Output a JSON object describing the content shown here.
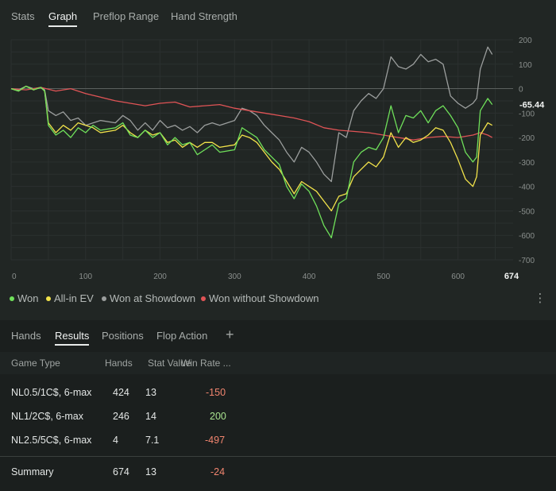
{
  "top_tabs": [
    {
      "label": "Stats"
    },
    {
      "label": "Graph"
    },
    {
      "label": "Preflop Range"
    },
    {
      "label": "Hand Strength"
    }
  ],
  "end_label": "-65.44",
  "max_hand_label": "674",
  "chart_data": {
    "type": "line",
    "x_ticks": [
      "0",
      "100",
      "200",
      "300",
      "400",
      "500",
      "600"
    ],
    "y_ticks": [
      "200",
      "100",
      "0",
      "-100",
      "-200",
      "-300",
      "-400",
      "-500",
      "-600",
      "-700"
    ],
    "xlim": [
      0,
      674
    ],
    "ylim": [
      -700,
      200
    ],
    "grid": true,
    "legend_position": "bottom-left",
    "series": [
      {
        "name": "Won",
        "color": "#6fe05a",
        "points": [
          [
            0,
            0
          ],
          [
            10,
            -10
          ],
          [
            20,
            10
          ],
          [
            30,
            -5
          ],
          [
            40,
            5
          ],
          [
            45,
            -10
          ],
          [
            50,
            -150
          ],
          [
            60,
            -190
          ],
          [
            70,
            -170
          ],
          [
            80,
            -200
          ],
          [
            90,
            -160
          ],
          [
            100,
            -180
          ],
          [
            110,
            -150
          ],
          [
            120,
            -170
          ],
          [
            140,
            -160
          ],
          [
            150,
            -140
          ],
          [
            160,
            -190
          ],
          [
            170,
            -200
          ],
          [
            180,
            -170
          ],
          [
            190,
            -200
          ],
          [
            200,
            -180
          ],
          [
            210,
            -230
          ],
          [
            220,
            -200
          ],
          [
            230,
            -230
          ],
          [
            240,
            -220
          ],
          [
            250,
            -270
          ],
          [
            260,
            -250
          ],
          [
            270,
            -230
          ],
          [
            280,
            -260
          ],
          [
            300,
            -250
          ],
          [
            310,
            -160
          ],
          [
            320,
            -180
          ],
          [
            330,
            -200
          ],
          [
            340,
            -250
          ],
          [
            350,
            -280
          ],
          [
            360,
            -310
          ],
          [
            370,
            -400
          ],
          [
            380,
            -450
          ],
          [
            390,
            -390
          ],
          [
            400,
            -420
          ],
          [
            410,
            -480
          ],
          [
            420,
            -560
          ],
          [
            430,
            -610
          ],
          [
            440,
            -470
          ],
          [
            450,
            -450
          ],
          [
            460,
            -300
          ],
          [
            470,
            -260
          ],
          [
            480,
            -240
          ],
          [
            490,
            -250
          ],
          [
            500,
            -200
          ],
          [
            510,
            -70
          ],
          [
            520,
            -180
          ],
          [
            530,
            -110
          ],
          [
            540,
            -120
          ],
          [
            550,
            -90
          ],
          [
            560,
            -140
          ],
          [
            570,
            -90
          ],
          [
            580,
            -70
          ],
          [
            590,
            -110
          ],
          [
            600,
            -160
          ],
          [
            610,
            -260
          ],
          [
            620,
            -300
          ],
          [
            625,
            -280
          ],
          [
            630,
            -90
          ],
          [
            640,
            -40
          ],
          [
            646,
            -65
          ]
        ]
      },
      {
        "name": "All-in EV",
        "color": "#f2e34a",
        "points": [
          [
            0,
            0
          ],
          [
            10,
            -10
          ],
          [
            20,
            10
          ],
          [
            30,
            -5
          ],
          [
            40,
            5
          ],
          [
            45,
            -10
          ],
          [
            50,
            -140
          ],
          [
            60,
            -180
          ],
          [
            70,
            -150
          ],
          [
            80,
            -170
          ],
          [
            90,
            -140
          ],
          [
            100,
            -150
          ],
          [
            110,
            -160
          ],
          [
            120,
            -180
          ],
          [
            140,
            -170
          ],
          [
            150,
            -150
          ],
          [
            160,
            -180
          ],
          [
            170,
            -200
          ],
          [
            180,
            -170
          ],
          [
            190,
            -190
          ],
          [
            200,
            -180
          ],
          [
            210,
            -220
          ],
          [
            220,
            -210
          ],
          [
            230,
            -240
          ],
          [
            240,
            -220
          ],
          [
            250,
            -240
          ],
          [
            260,
            -220
          ],
          [
            270,
            -220
          ],
          [
            280,
            -240
          ],
          [
            300,
            -230
          ],
          [
            310,
            -190
          ],
          [
            320,
            -200
          ],
          [
            330,
            -220
          ],
          [
            340,
            -260
          ],
          [
            350,
            -300
          ],
          [
            360,
            -330
          ],
          [
            370,
            -380
          ],
          [
            380,
            -430
          ],
          [
            390,
            -380
          ],
          [
            400,
            -400
          ],
          [
            410,
            -420
          ],
          [
            420,
            -460
          ],
          [
            430,
            -500
          ],
          [
            440,
            -440
          ],
          [
            450,
            -430
          ],
          [
            460,
            -360
          ],
          [
            470,
            -330
          ],
          [
            480,
            -300
          ],
          [
            490,
            -320
          ],
          [
            500,
            -280
          ],
          [
            510,
            -180
          ],
          [
            520,
            -240
          ],
          [
            530,
            -200
          ],
          [
            540,
            -220
          ],
          [
            550,
            -210
          ],
          [
            560,
            -190
          ],
          [
            570,
            -160
          ],
          [
            580,
            -170
          ],
          [
            590,
            -220
          ],
          [
            600,
            -290
          ],
          [
            610,
            -370
          ],
          [
            620,
            -400
          ],
          [
            625,
            -360
          ],
          [
            630,
            -190
          ],
          [
            640,
            -140
          ],
          [
            646,
            -150
          ]
        ]
      },
      {
        "name": "Won at Showdown",
        "color": "#9b9e9d",
        "points": [
          [
            0,
            0
          ],
          [
            10,
            -5
          ],
          [
            20,
            10
          ],
          [
            30,
            0
          ],
          [
            40,
            5
          ],
          [
            45,
            -5
          ],
          [
            50,
            -90
          ],
          [
            60,
            -110
          ],
          [
            70,
            -95
          ],
          [
            80,
            -130
          ],
          [
            90,
            -120
          ],
          [
            100,
            -150
          ],
          [
            120,
            -130
          ],
          [
            140,
            -140
          ],
          [
            150,
            -110
          ],
          [
            160,
            -130
          ],
          [
            170,
            -170
          ],
          [
            180,
            -140
          ],
          [
            190,
            -170
          ],
          [
            200,
            -130
          ],
          [
            210,
            -160
          ],
          [
            220,
            -150
          ],
          [
            230,
            -170
          ],
          [
            240,
            -155
          ],
          [
            250,
            -180
          ],
          [
            260,
            -150
          ],
          [
            270,
            -140
          ],
          [
            280,
            -150
          ],
          [
            300,
            -130
          ],
          [
            310,
            -80
          ],
          [
            320,
            -90
          ],
          [
            330,
            -110
          ],
          [
            340,
            -150
          ],
          [
            350,
            -180
          ],
          [
            360,
            -210
          ],
          [
            370,
            -260
          ],
          [
            380,
            -300
          ],
          [
            390,
            -240
          ],
          [
            400,
            -260
          ],
          [
            410,
            -300
          ],
          [
            420,
            -350
          ],
          [
            430,
            -380
          ],
          [
            440,
            -180
          ],
          [
            450,
            -200
          ],
          [
            460,
            -90
          ],
          [
            470,
            -50
          ],
          [
            480,
            -20
          ],
          [
            490,
            -40
          ],
          [
            500,
            0
          ],
          [
            510,
            130
          ],
          [
            520,
            90
          ],
          [
            530,
            80
          ],
          [
            540,
            100
          ],
          [
            550,
            140
          ],
          [
            560,
            110
          ],
          [
            570,
            120
          ],
          [
            580,
            100
          ],
          [
            590,
            -30
          ],
          [
            600,
            -60
          ],
          [
            610,
            -80
          ],
          [
            620,
            -60
          ],
          [
            625,
            -40
          ],
          [
            630,
            80
          ],
          [
            640,
            170
          ],
          [
            646,
            140
          ]
        ]
      },
      {
        "name": "Won without Showdown",
        "color": "#e05456",
        "points": [
          [
            0,
            0
          ],
          [
            20,
            -5
          ],
          [
            40,
            5
          ],
          [
            60,
            -10
          ],
          [
            80,
            0
          ],
          [
            100,
            -20
          ],
          [
            120,
            -35
          ],
          [
            140,
            -50
          ],
          [
            160,
            -60
          ],
          [
            180,
            -70
          ],
          [
            200,
            -60
          ],
          [
            220,
            -55
          ],
          [
            240,
            -75
          ],
          [
            260,
            -70
          ],
          [
            280,
            -65
          ],
          [
            300,
            -80
          ],
          [
            320,
            -90
          ],
          [
            340,
            -100
          ],
          [
            360,
            -110
          ],
          [
            380,
            -120
          ],
          [
            400,
            -135
          ],
          [
            420,
            -160
          ],
          [
            440,
            -170
          ],
          [
            460,
            -175
          ],
          [
            480,
            -180
          ],
          [
            500,
            -190
          ],
          [
            520,
            -200
          ],
          [
            540,
            -210
          ],
          [
            560,
            -200
          ],
          [
            580,
            -195
          ],
          [
            600,
            -200
          ],
          [
            620,
            -190
          ],
          [
            630,
            -180
          ],
          [
            640,
            -190
          ],
          [
            646,
            -200
          ]
        ]
      }
    ]
  },
  "legend": [
    {
      "label": "Won",
      "color": "#6fe05a"
    },
    {
      "label": "All-in EV",
      "color": "#f2e34a"
    },
    {
      "label": "Won at Showdown",
      "color": "#9b9e9d"
    },
    {
      "label": "Won without Showdown",
      "color": "#e05456"
    }
  ],
  "bottom_tabs": [
    {
      "label": "Hands"
    },
    {
      "label": "Results"
    },
    {
      "label": "Positions"
    },
    {
      "label": "Flop Action"
    }
  ],
  "add_tab_label": "+",
  "table": {
    "headers": [
      "Game Type",
      "Hands",
      "Stat Value",
      "Win Rate ..."
    ],
    "rows": [
      {
        "game": "NL0.5/1C$, 6-max",
        "hands": "424",
        "stat": "13",
        "winrate": "-150"
      },
      {
        "game": "NL1/2C$, 6-max",
        "hands": "246",
        "stat": "14",
        "winrate": "200"
      },
      {
        "game": "NL2.5/5C$, 6-max",
        "hands": "4",
        "stat": "7.1",
        "winrate": "-497"
      }
    ],
    "summary": {
      "game": "Summary",
      "hands": "674",
      "stat": "13",
      "winrate": "-24"
    }
  },
  "colors": {
    "positive": "#a9e38f",
    "negative": "#f2856f",
    "accent": "#e8ebea"
  }
}
